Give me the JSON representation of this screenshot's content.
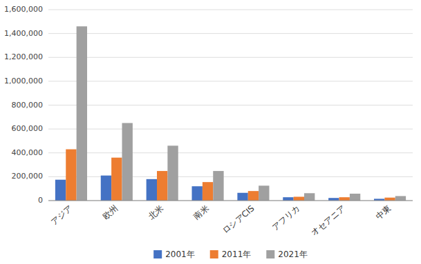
{
  "chart_data": {
    "type": "bar",
    "categories": [
      "アジア",
      "欧州",
      "北米",
      "南米",
      "ロシアCIS",
      "アフリカ",
      "オセアニア",
      "中東"
    ],
    "series": [
      {
        "name": "2001年",
        "color": "#4472c4",
        "values": [
          175000,
          210000,
          180000,
          120000,
          65000,
          28000,
          22000,
          15000
        ]
      },
      {
        "name": "2011年",
        "color": "#ed7d31",
        "values": [
          430000,
          360000,
          248000,
          155000,
          80000,
          32000,
          28000,
          25000
        ]
      },
      {
        "name": "2021年",
        "color": "#a0a0a0",
        "values": [
          1460000,
          650000,
          460000,
          248000,
          125000,
          62000,
          58000,
          38000
        ]
      }
    ],
    "ylim": [
      0,
      1600000
    ],
    "yticks": [
      0,
      {
        "value": 200000,
        "label": "200,000"
      },
      {
        "value": 400000,
        "label": "400,000"
      },
      {
        "value": 600000,
        "label": "600,000"
      },
      {
        "value": 800000,
        "label": "800,000"
      },
      {
        "value": 1000000,
        "label": "1,000,000"
      },
      {
        "value": 1200000,
        "label": "1,200,000"
      },
      {
        "value": 1400000,
        "label": "1,400,000"
      },
      {
        "value": 1600000,
        "label": "1,600,000"
      }
    ],
    "grid": true,
    "legend": "bottom"
  }
}
